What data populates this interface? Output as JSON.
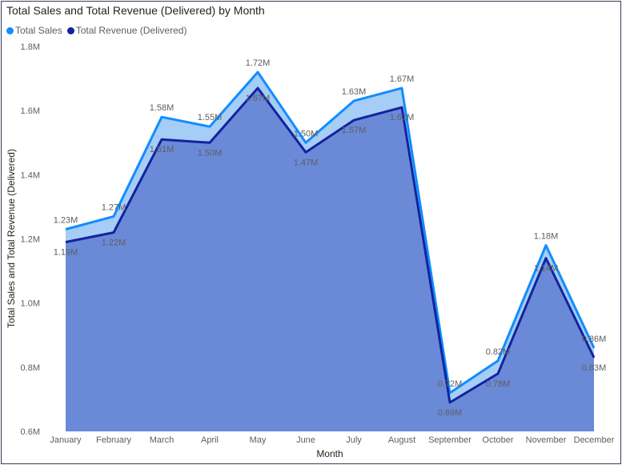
{
  "chart_data": {
    "type": "area",
    "title": "Total Sales and Total Revenue (Delivered) by Month",
    "xlabel": "Month",
    "ylabel": "Total Sales and Total Revenue (Delivered)",
    "ylim": [
      0.6,
      1.8
    ],
    "yticks": [
      "0.6M",
      "0.8M",
      "1.0M",
      "1.2M",
      "1.4M",
      "1.6M",
      "1.8M"
    ],
    "grid": false,
    "legend_position": "top-left",
    "categories": [
      "January",
      "February",
      "March",
      "April",
      "May",
      "June",
      "July",
      "August",
      "September",
      "October",
      "November",
      "December"
    ],
    "series": [
      {
        "name": "Total Sales",
        "color": "#118dff",
        "fill": "#a5cdf5",
        "values": [
          1.23,
          1.27,
          1.58,
          1.55,
          1.72,
          1.5,
          1.63,
          1.67,
          0.72,
          0.82,
          1.18,
          0.86
        ],
        "labels": [
          "1.23M",
          "1.27M",
          "1.58M",
          "1.55M",
          "1.72M",
          "1.50M",
          "1.63M",
          "1.67M",
          "0.72M",
          "0.82M",
          "1.18M",
          "0.86M"
        ]
      },
      {
        "name": "Total Revenue (Delivered)",
        "color": "#12239e",
        "fill": "#6a8ad8",
        "values": [
          1.19,
          1.22,
          1.51,
          1.5,
          1.67,
          1.47,
          1.57,
          1.61,
          0.69,
          0.78,
          1.14,
          0.83
        ],
        "labels": [
          "1.19M",
          "1.22M",
          "1.51M",
          "1.50M",
          "1.67M",
          "1.47M",
          "1.57M",
          "1.61M",
          "0.69M",
          "0.78M",
          "1.14M",
          "0.83M"
        ]
      }
    ]
  }
}
